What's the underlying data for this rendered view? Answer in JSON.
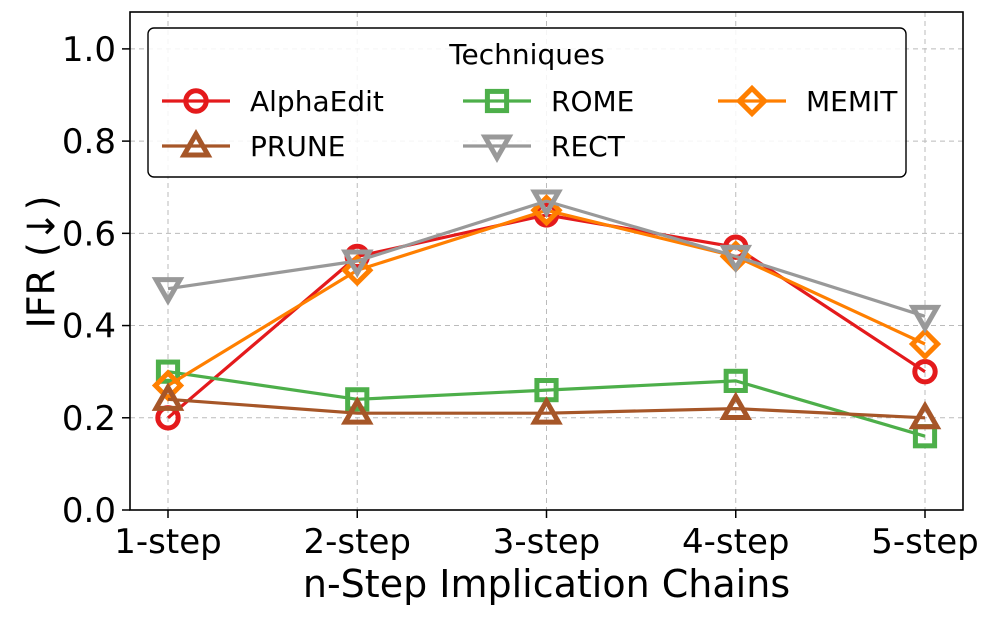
{
  "chart_data": {
    "type": "line",
    "xlabel": "n-Step Implication Chains",
    "ylabel": "IFR (↓)",
    "categories": [
      "1-step",
      "2-step",
      "3-step",
      "4-step",
      "5-step"
    ],
    "ylim": [
      0.0,
      1.08
    ],
    "yticks": [
      "0.0",
      "0.2",
      "0.4",
      "0.6",
      "0.8",
      "1.0"
    ],
    "grid": true,
    "legend": {
      "title": "Techniques",
      "placement": "top",
      "columns": 3
    },
    "series": [
      {
        "name": "AlphaEdit",
        "color": "#e41a1c",
        "marker": "circle",
        "values": [
          0.2,
          0.55,
          0.64,
          0.57,
          0.3
        ]
      },
      {
        "name": "ROME",
        "color": "#4daf4a",
        "marker": "square",
        "values": [
          0.3,
          0.24,
          0.26,
          0.28,
          0.16
        ]
      },
      {
        "name": "MEMIT",
        "color": "#ff7f00",
        "marker": "diamond",
        "values": [
          0.27,
          0.52,
          0.65,
          0.55,
          0.36
        ]
      },
      {
        "name": "PRUNE",
        "color": "#a65628",
        "marker": "triangle-up",
        "values": [
          0.24,
          0.21,
          0.21,
          0.22,
          0.2
        ]
      },
      {
        "name": "RECT",
        "color": "#999999",
        "marker": "triangle-down",
        "values": [
          0.48,
          0.54,
          0.67,
          0.55,
          0.42
        ]
      }
    ]
  }
}
